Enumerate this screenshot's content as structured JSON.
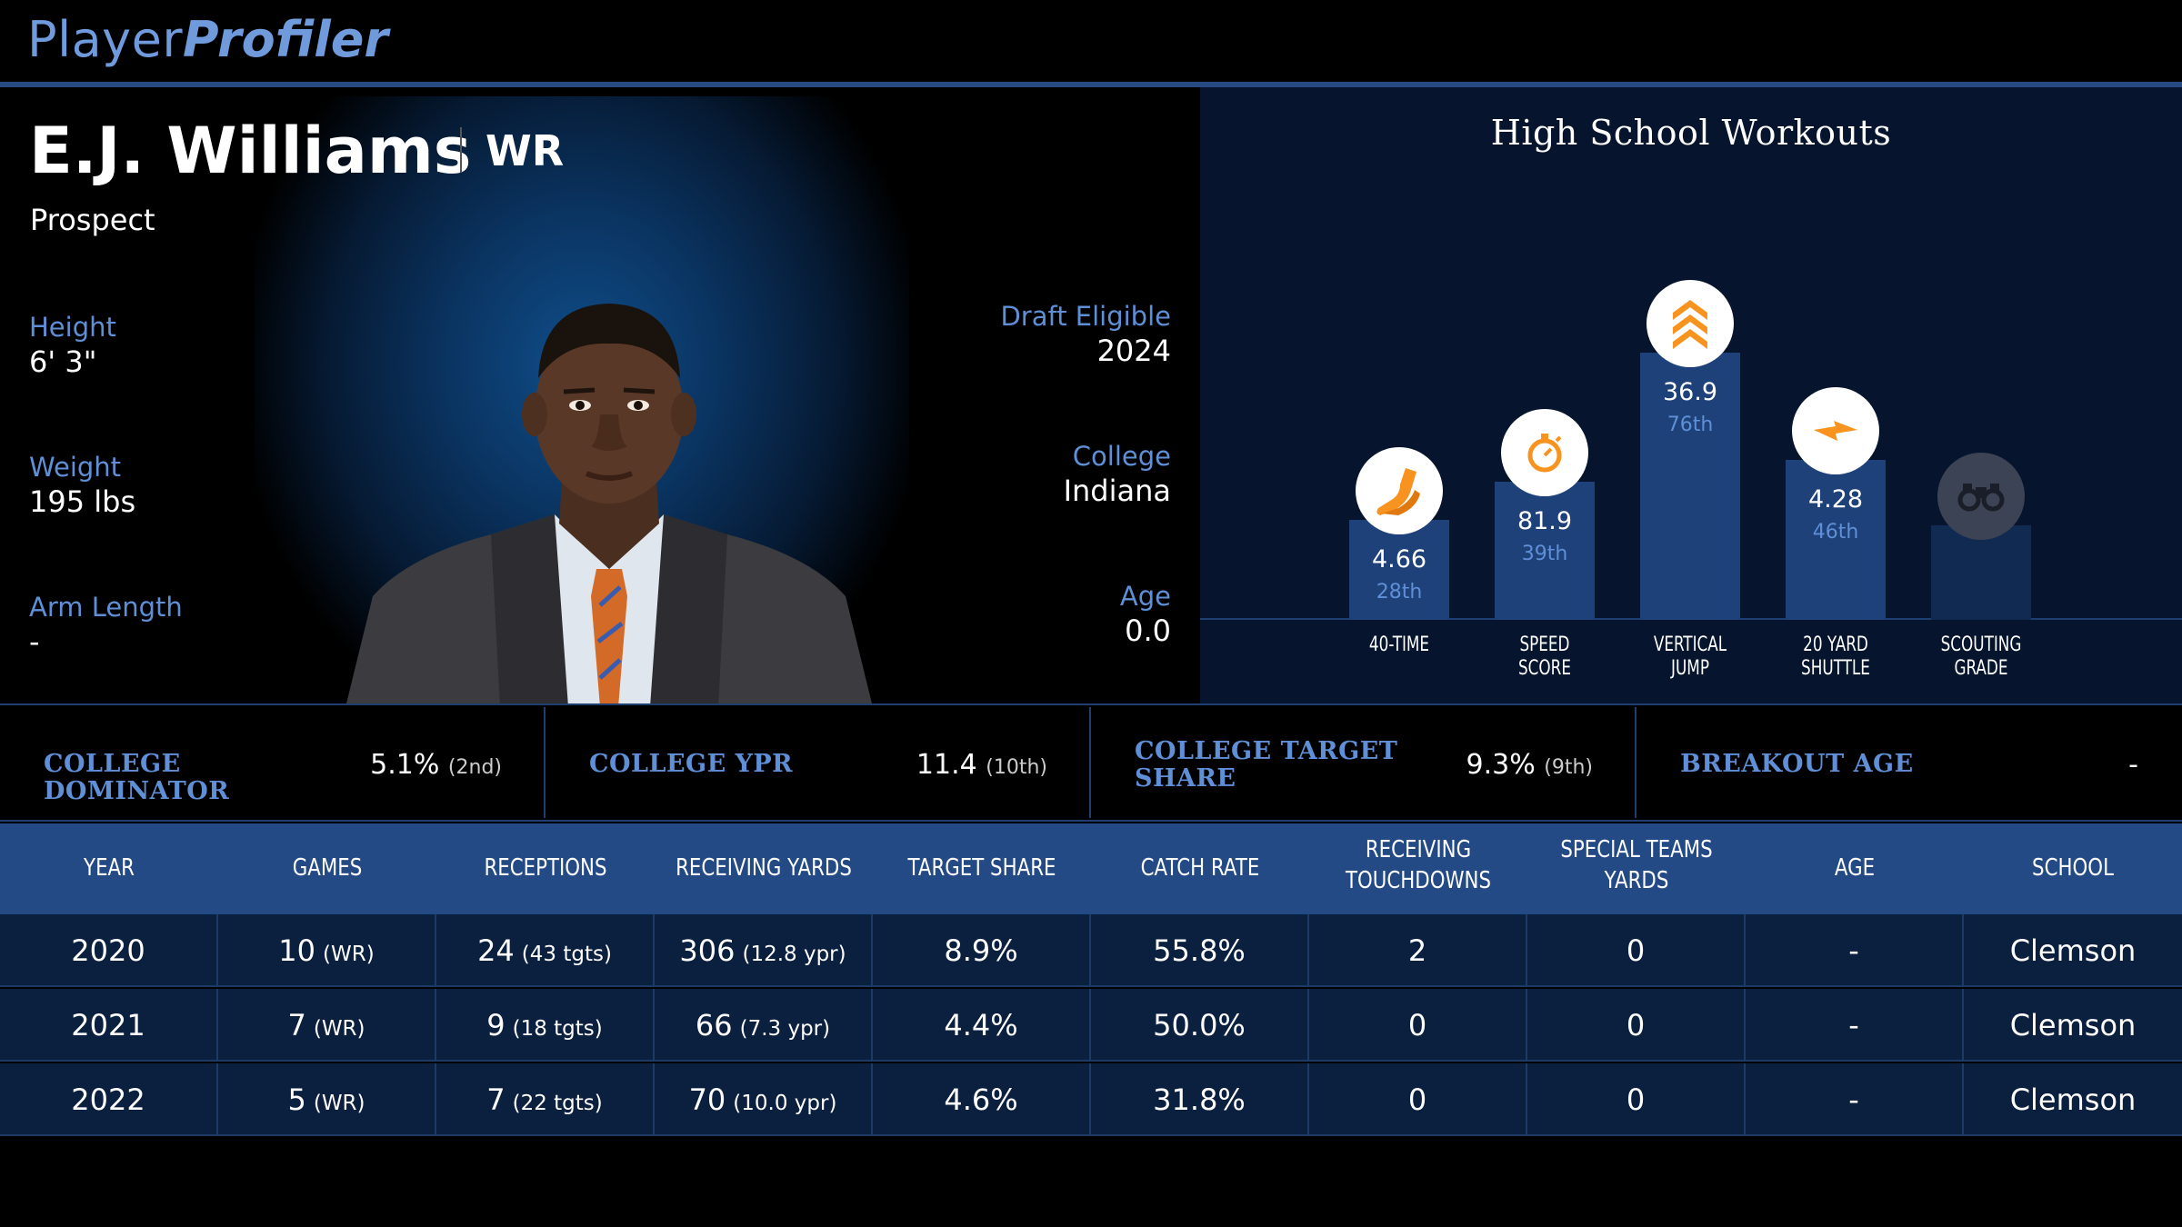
{
  "brand": {
    "part1": "Player",
    "part2": "Profiler"
  },
  "player": {
    "name": "E.J. Williams",
    "position": "WR",
    "status": "Prospect",
    "height_label": "Height",
    "height": "6' 3\"",
    "weight_label": "Weight",
    "weight": "195 lbs",
    "arm_label": "Arm Length",
    "arm": "-",
    "draft_label": "Draft Eligible",
    "draft": "2024",
    "college_label": "College",
    "college": "Indiana",
    "age_label": "Age",
    "age": "0.0"
  },
  "workouts": {
    "title": "High School Workouts",
    "items": [
      {
        "label1": "40-TIME",
        "label2": "",
        "value": "4.66",
        "pct": "28th",
        "icon": "shoe-icon"
      },
      {
        "label1": "SPEED",
        "label2": "SCORE",
        "value": "81.9",
        "pct": "39th",
        "icon": "stopwatch-icon"
      },
      {
        "label1": "VERTICAL",
        "label2": "JUMP",
        "value": "36.9",
        "pct": "76th",
        "icon": "chevrons-up-icon"
      },
      {
        "label1": "20 YARD",
        "label2": "SHUTTLE",
        "value": "4.28",
        "pct": "46th",
        "icon": "lightning-icon"
      },
      {
        "label1": "SCOUTING",
        "label2": "GRADE",
        "value": "",
        "pct": "",
        "icon": "binoculars-icon"
      }
    ],
    "accent": "#f7931e"
  },
  "metrics": [
    {
      "label": "COLLEGE DOMINATOR",
      "value": "5.1%",
      "rank": "(2nd)"
    },
    {
      "label": "COLLEGE YPR",
      "value": "11.4",
      "rank": "(10th)"
    },
    {
      "label": "COLLEGE TARGET SHARE",
      "value": "9.3%",
      "rank": "(9th)"
    },
    {
      "label": "BREAKOUT AGE",
      "value": "-",
      "rank": ""
    }
  ],
  "table": {
    "headers": [
      [
        "YEAR",
        ""
      ],
      [
        "GAMES",
        ""
      ],
      [
        "RECEPTIONS",
        ""
      ],
      [
        "RECEIVING YARDS",
        ""
      ],
      [
        "TARGET SHARE",
        ""
      ],
      [
        "CATCH RATE",
        ""
      ],
      [
        "RECEIVING",
        "TOUCHDOWNS"
      ],
      [
        "SPECIAL TEAMS",
        "YARDS"
      ],
      [
        "AGE",
        ""
      ],
      [
        "SCHOOL",
        ""
      ]
    ],
    "rows": [
      {
        "year": "2020",
        "games": "10",
        "games_sub": "(WR)",
        "rec": "24",
        "rec_sub": "(43 tgts)",
        "yds": "306",
        "yds_sub": "(12.8 ypr)",
        "ts": "8.9%",
        "cr": "55.8%",
        "td": "2",
        "st": "0",
        "age": "-",
        "school": "Clemson"
      },
      {
        "year": "2021",
        "games": "7",
        "games_sub": "(WR)",
        "rec": "9",
        "rec_sub": "(18 tgts)",
        "yds": "66",
        "yds_sub": "(7.3 ypr)",
        "ts": "4.4%",
        "cr": "50.0%",
        "td": "0",
        "st": "0",
        "age": "-",
        "school": "Clemson"
      },
      {
        "year": "2022",
        "games": "5",
        "games_sub": "(WR)",
        "rec": "7",
        "rec_sub": "(22 tgts)",
        "yds": "70",
        "yds_sub": "(10.0 ypr)",
        "ts": "4.6%",
        "cr": "31.8%",
        "td": "0",
        "st": "0",
        "age": "-",
        "school": "Clemson"
      }
    ]
  }
}
